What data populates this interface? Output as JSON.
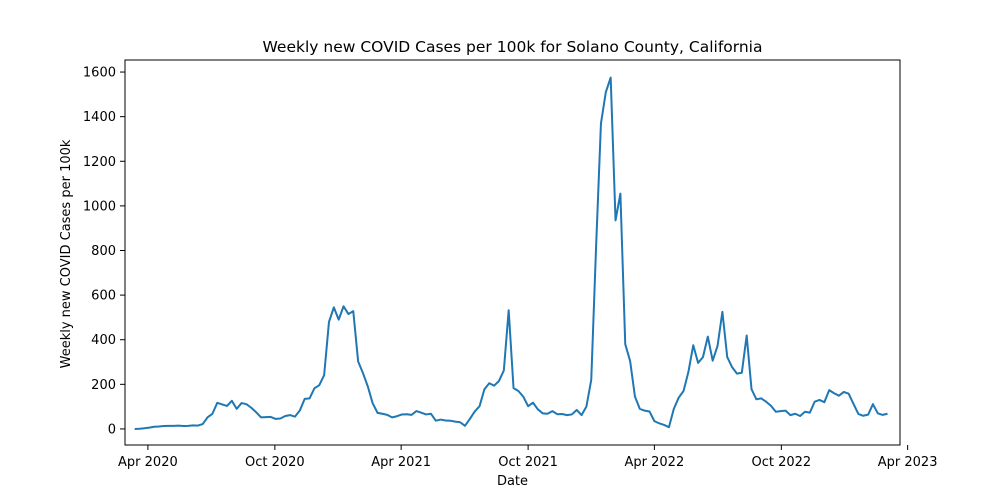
{
  "chart_data": {
    "type": "line",
    "title": "Weekly new COVID Cases per 100k for Solano County, California",
    "xlabel": "Date",
    "ylabel": "Weekly new COVID Cases per 100k",
    "xlim": [
      "2020-02-28",
      "2023-03-21"
    ],
    "ylim": [
      -72,
      1654
    ],
    "grid": false,
    "line_color": "#1f77b4",
    "x_ticks": [
      {
        "date": "2020-04-01",
        "label": "Apr 2020"
      },
      {
        "date": "2020-10-01",
        "label": "Oct 2020"
      },
      {
        "date": "2021-04-01",
        "label": "Apr 2021"
      },
      {
        "date": "2021-10-01",
        "label": "Oct 2021"
      },
      {
        "date": "2022-04-01",
        "label": "Apr 2022"
      },
      {
        "date": "2022-10-01",
        "label": "Oct 2022"
      },
      {
        "date": "2023-04-01",
        "label": "Apr 2023"
      }
    ],
    "y_ticks": [
      {
        "value": 0,
        "label": "0"
      },
      {
        "value": 200,
        "label": "200"
      },
      {
        "value": 400,
        "label": "400"
      },
      {
        "value": 600,
        "label": "600"
      },
      {
        "value": 800,
        "label": "800"
      },
      {
        "value": 1000,
        "label": "1000"
      },
      {
        "value": 1200,
        "label": "1200"
      },
      {
        "value": 1400,
        "label": "1400"
      },
      {
        "value": 1600,
        "label": "1600"
      }
    ],
    "series": [
      {
        "points": [
          [
            "2020-03-13",
            0
          ],
          [
            "2020-03-20",
            1
          ],
          [
            "2020-03-27",
            3
          ],
          [
            "2020-04-03",
            6
          ],
          [
            "2020-04-10",
            10
          ],
          [
            "2020-04-17",
            11
          ],
          [
            "2020-04-24",
            13
          ],
          [
            "2020-05-01",
            14
          ],
          [
            "2020-05-08",
            14
          ],
          [
            "2020-05-15",
            15
          ],
          [
            "2020-05-22",
            13
          ],
          [
            "2020-05-29",
            14
          ],
          [
            "2020-06-05",
            16
          ],
          [
            "2020-06-12",
            15
          ],
          [
            "2020-06-19",
            22
          ],
          [
            "2020-06-26",
            52
          ],
          [
            "2020-07-03",
            68
          ],
          [
            "2020-07-10",
            117
          ],
          [
            "2020-07-17",
            110
          ],
          [
            "2020-07-24",
            103
          ],
          [
            "2020-07-31",
            126
          ],
          [
            "2020-08-07",
            90
          ],
          [
            "2020-08-14",
            116
          ],
          [
            "2020-08-21",
            111
          ],
          [
            "2020-08-28",
            95
          ],
          [
            "2020-09-04",
            75
          ],
          [
            "2020-09-11",
            52
          ],
          [
            "2020-09-18",
            53
          ],
          [
            "2020-09-25",
            54
          ],
          [
            "2020-10-02",
            45
          ],
          [
            "2020-10-09",
            47
          ],
          [
            "2020-10-16",
            58
          ],
          [
            "2020-10-23",
            62
          ],
          [
            "2020-10-30",
            55
          ],
          [
            "2020-11-06",
            83
          ],
          [
            "2020-11-13",
            135
          ],
          [
            "2020-11-20",
            137
          ],
          [
            "2020-11-27",
            182
          ],
          [
            "2020-12-04",
            196
          ],
          [
            "2020-12-11",
            241
          ],
          [
            "2020-12-18",
            480
          ],
          [
            "2020-12-25",
            545
          ],
          [
            "2021-01-01",
            490
          ],
          [
            "2021-01-08",
            550
          ],
          [
            "2021-01-15",
            515
          ],
          [
            "2021-01-22",
            528
          ],
          [
            "2021-01-29",
            303
          ],
          [
            "2021-02-05",
            250
          ],
          [
            "2021-02-12",
            190
          ],
          [
            "2021-02-19",
            115
          ],
          [
            "2021-02-26",
            72
          ],
          [
            "2021-03-05",
            68
          ],
          [
            "2021-03-12",
            63
          ],
          [
            "2021-03-19",
            52
          ],
          [
            "2021-03-26",
            57
          ],
          [
            "2021-04-02",
            65
          ],
          [
            "2021-04-09",
            66
          ],
          [
            "2021-04-16",
            63
          ],
          [
            "2021-04-23",
            80
          ],
          [
            "2021-04-30",
            73
          ],
          [
            "2021-05-07",
            65
          ],
          [
            "2021-05-14",
            68
          ],
          [
            "2021-05-21",
            37
          ],
          [
            "2021-05-28",
            42
          ],
          [
            "2021-06-04",
            38
          ],
          [
            "2021-06-11",
            37
          ],
          [
            "2021-06-18",
            33
          ],
          [
            "2021-06-25",
            30
          ],
          [
            "2021-07-02",
            14
          ],
          [
            "2021-07-09",
            45
          ],
          [
            "2021-07-16",
            78
          ],
          [
            "2021-07-23",
            102
          ],
          [
            "2021-07-30",
            178
          ],
          [
            "2021-08-06",
            205
          ],
          [
            "2021-08-13",
            194
          ],
          [
            "2021-08-20",
            215
          ],
          [
            "2021-08-27",
            262
          ],
          [
            "2021-09-03",
            532
          ],
          [
            "2021-09-10",
            183
          ],
          [
            "2021-09-17",
            170
          ],
          [
            "2021-09-24",
            145
          ],
          [
            "2021-10-01",
            102
          ],
          [
            "2021-10-08",
            118
          ],
          [
            "2021-10-15",
            88
          ],
          [
            "2021-10-22",
            70
          ],
          [
            "2021-10-29",
            68
          ],
          [
            "2021-11-05",
            80
          ],
          [
            "2021-11-12",
            66
          ],
          [
            "2021-11-19",
            67
          ],
          [
            "2021-11-26",
            62
          ],
          [
            "2021-12-03",
            65
          ],
          [
            "2021-12-10",
            85
          ],
          [
            "2021-12-17",
            62
          ],
          [
            "2021-12-24",
            100
          ],
          [
            "2021-12-31",
            220
          ],
          [
            "2022-01-07",
            820
          ],
          [
            "2022-01-14",
            1370
          ],
          [
            "2022-01-21",
            1510
          ],
          [
            "2022-01-28",
            1575
          ],
          [
            "2022-02-04",
            935
          ],
          [
            "2022-02-11",
            1055
          ],
          [
            "2022-02-18",
            380
          ],
          [
            "2022-02-25",
            305
          ],
          [
            "2022-03-04",
            145
          ],
          [
            "2022-03-11",
            90
          ],
          [
            "2022-03-18",
            82
          ],
          [
            "2022-03-25",
            78
          ],
          [
            "2022-04-01",
            35
          ],
          [
            "2022-04-08",
            25
          ],
          [
            "2022-04-15",
            18
          ],
          [
            "2022-04-22",
            8
          ],
          [
            "2022-04-29",
            90
          ],
          [
            "2022-05-06",
            140
          ],
          [
            "2022-05-13",
            170
          ],
          [
            "2022-05-20",
            255
          ],
          [
            "2022-05-27",
            375
          ],
          [
            "2022-06-03",
            296
          ],
          [
            "2022-06-10",
            322
          ],
          [
            "2022-06-17",
            414
          ],
          [
            "2022-06-24",
            306
          ],
          [
            "2022-07-01",
            372
          ],
          [
            "2022-07-08",
            525
          ],
          [
            "2022-07-15",
            322
          ],
          [
            "2022-07-22",
            277
          ],
          [
            "2022-07-29",
            248
          ],
          [
            "2022-08-05",
            252
          ],
          [
            "2022-08-12",
            419
          ],
          [
            "2022-08-19",
            178
          ],
          [
            "2022-08-26",
            133
          ],
          [
            "2022-09-02",
            137
          ],
          [
            "2022-09-09",
            122
          ],
          [
            "2022-09-16",
            104
          ],
          [
            "2022-09-23",
            77
          ],
          [
            "2022-09-30",
            80
          ],
          [
            "2022-10-07",
            82
          ],
          [
            "2022-10-14",
            62
          ],
          [
            "2022-10-21",
            68
          ],
          [
            "2022-10-28",
            58
          ],
          [
            "2022-11-04",
            77
          ],
          [
            "2022-11-11",
            73
          ],
          [
            "2022-11-18",
            122
          ],
          [
            "2022-11-25",
            130
          ],
          [
            "2022-12-02",
            120
          ],
          [
            "2022-12-09",
            174
          ],
          [
            "2022-12-16",
            160
          ],
          [
            "2022-12-23",
            149
          ],
          [
            "2022-12-30",
            166
          ],
          [
            "2023-01-06",
            158
          ],
          [
            "2023-01-13",
            112
          ],
          [
            "2023-01-20",
            67
          ],
          [
            "2023-01-27",
            59
          ],
          [
            "2023-02-03",
            64
          ],
          [
            "2023-02-10",
            111
          ],
          [
            "2023-02-17",
            70
          ],
          [
            "2023-02-24",
            63
          ],
          [
            "2023-03-03",
            68
          ]
        ]
      }
    ]
  }
}
